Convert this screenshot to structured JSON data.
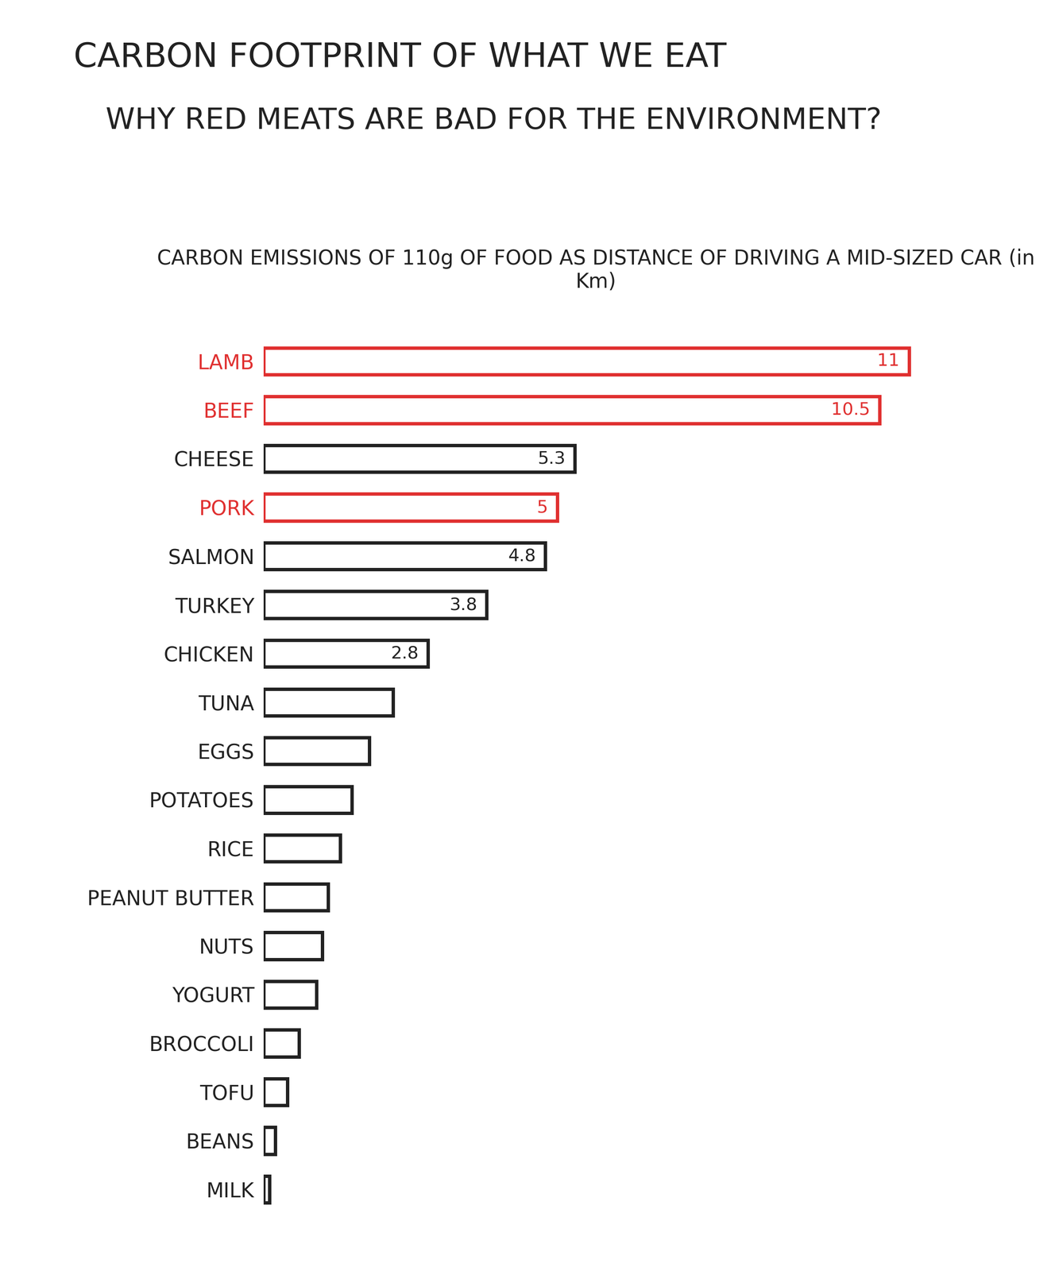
{
  "chart_data": {
    "type": "bar",
    "orientation": "horizontal",
    "title": "CARBON FOOTPRINT OF WHAT WE EAT",
    "subtitle": "WHY RED MEATS ARE BAD FOR THE ENVIRONMENT?",
    "xlabel": "CARBON EMISSIONS OF 110g OF FOOD AS DISTANCE OF DRIVING A MID-SIZED CAR (in Km)",
    "categories": [
      "LAMB",
      "BEEF",
      "CHEESE",
      "PORK",
      "SALMON",
      "TURKEY",
      "CHICKEN",
      "TUNA",
      "EGGS",
      "POTATOES",
      "RICE",
      "PEANUT BUTTER",
      "NUTS",
      "YOGURT",
      "BROCCOLI",
      "TOFU",
      "BEANS",
      "MILK"
    ],
    "values": [
      11,
      10.5,
      5.3,
      5,
      4.8,
      3.8,
      2.8,
      2.2,
      1.8,
      1.5,
      1.3,
      1.1,
      1.0,
      0.9,
      0.6,
      0.4,
      0.2,
      0.1
    ],
    "value_labels": [
      "11",
      "10.5",
      "5.3",
      "5",
      "4.8",
      "3.8",
      "2.8",
      null,
      null,
      null,
      null,
      null,
      null,
      null,
      null,
      null,
      null,
      null
    ],
    "colors": [
      "#e03030",
      "#e03030",
      "#222222",
      "#e03030",
      "#222222",
      "#222222",
      "#222222",
      "#222222",
      "#222222",
      "#222222",
      "#222222",
      "#222222",
      "#222222",
      "#222222",
      "#222222",
      "#222222",
      "#222222",
      "#222222"
    ],
    "data_labels": true,
    "tick_labels": "y",
    "grid": false
  }
}
